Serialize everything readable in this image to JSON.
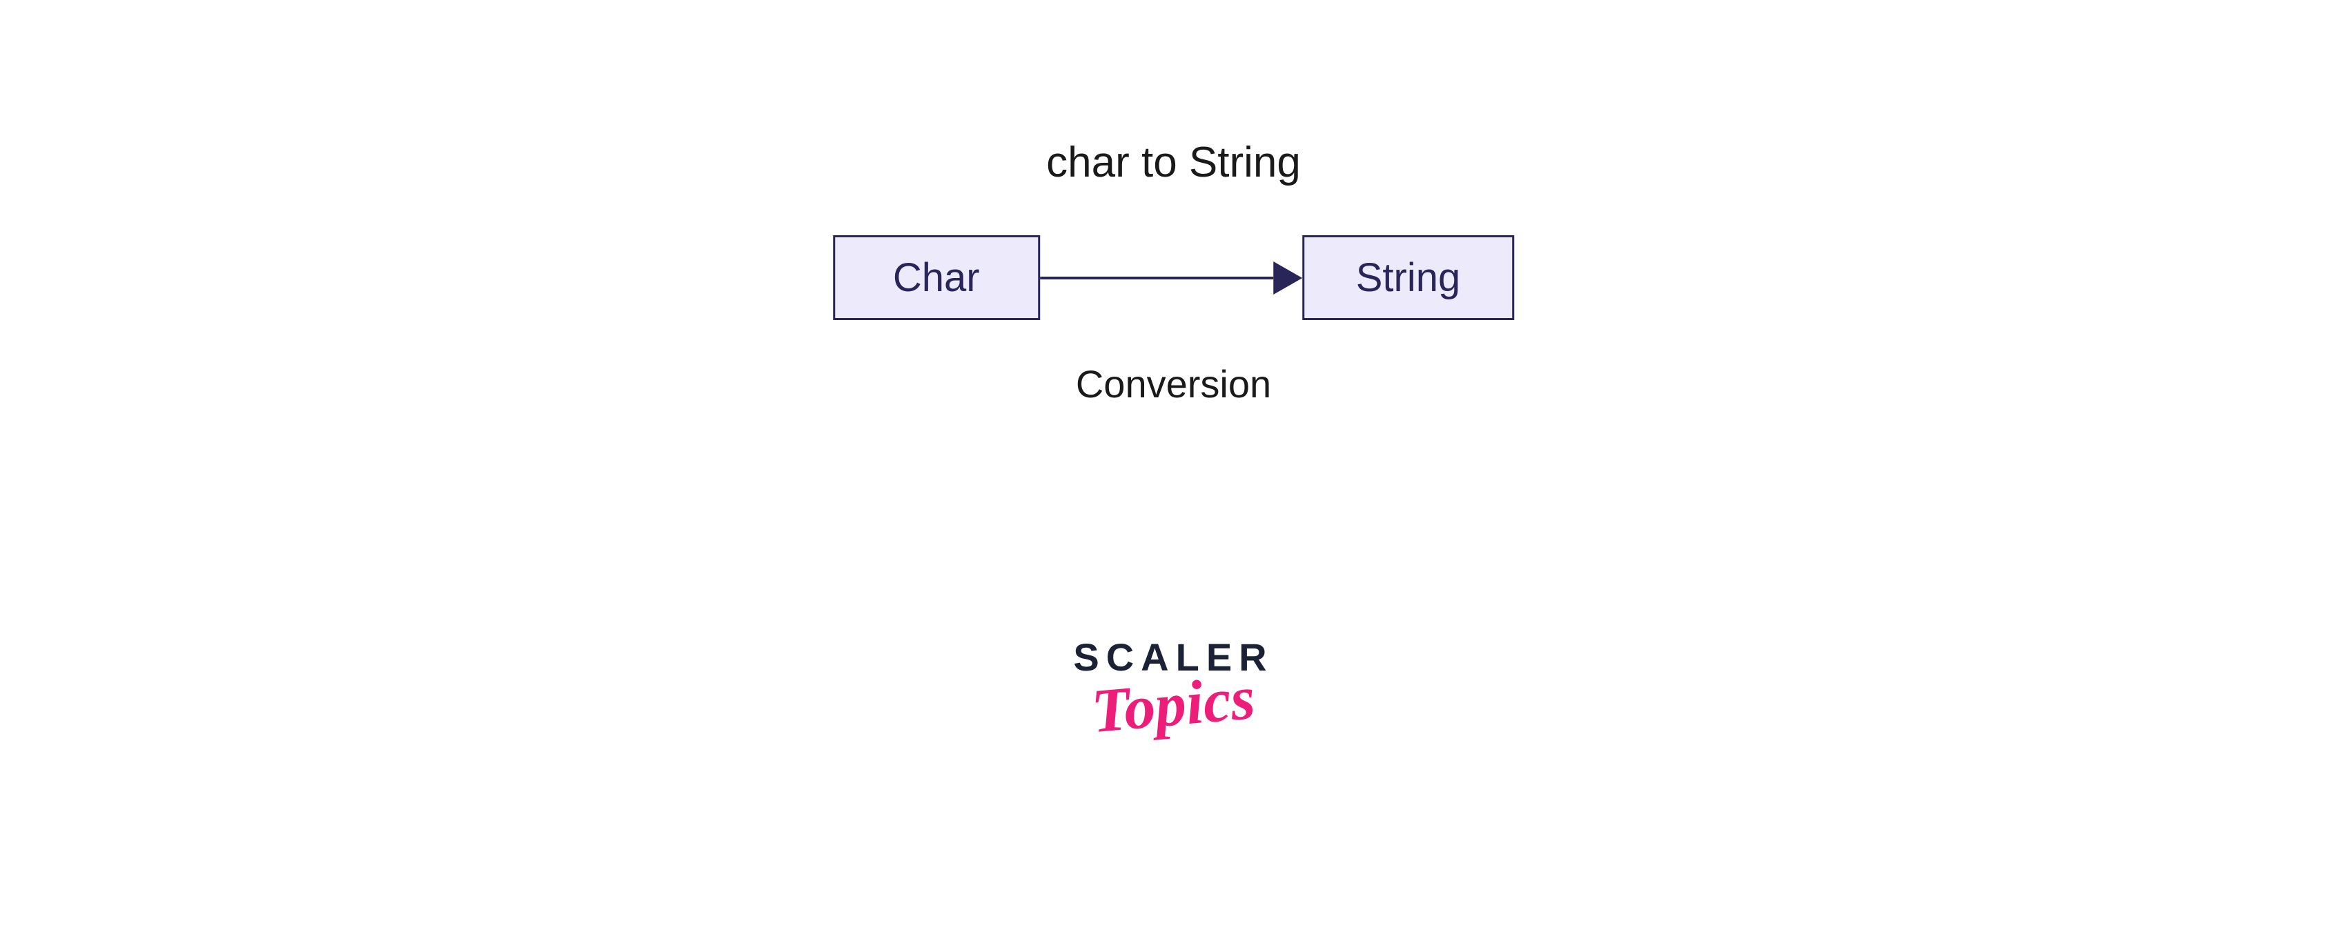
{
  "diagram": {
    "title": "char to String",
    "subtitle": "Conversion",
    "source_box": {
      "label": "Char",
      "bg_color": "#eceafb",
      "border_color": "#2a2559",
      "text_color": "#2a2559"
    },
    "target_box": {
      "label": "String",
      "bg_color": "#eceafb",
      "border_color": "#2a2559",
      "text_color": "#2a2559"
    },
    "arrow": {
      "color": "#2a2559"
    },
    "title_color": "#1a1a1a",
    "subtitle_color": "#1a1a1a"
  },
  "logo": {
    "line1": "SCALER",
    "line2": "Topics",
    "line1_color": "#1c2236",
    "line2_color": "#ed1e79"
  },
  "background_color": "#ffffff"
}
